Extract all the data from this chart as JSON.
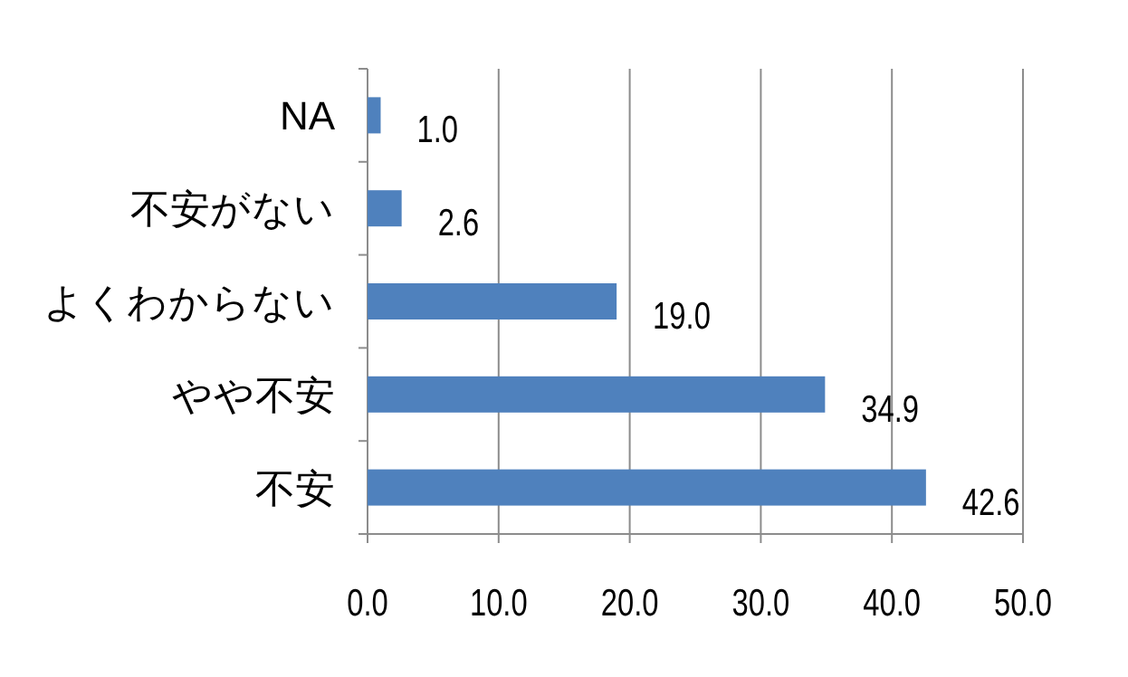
{
  "chart_data": {
    "type": "bar",
    "orientation": "horizontal",
    "categories": [
      "NA",
      "不安がない",
      "よくわからない",
      "やや不安",
      "不安"
    ],
    "values": [
      1.0,
      2.6,
      19.0,
      34.9,
      42.6
    ],
    "value_labels": [
      "1.0",
      "2.6",
      "19.0",
      "34.9",
      "42.6"
    ],
    "color": "#4f81bd",
    "xlim": [
      0,
      50
    ],
    "xticks": [
      {
        "value": 0,
        "label": "0.0"
      },
      {
        "value": 10,
        "label": "10.0"
      },
      {
        "value": 20,
        "label": "20.0"
      },
      {
        "value": 30,
        "label": "30.0"
      },
      {
        "value": 40,
        "label": "40.0"
      },
      {
        "value": 50,
        "label": "50.0"
      }
    ],
    "grid": "x"
  }
}
